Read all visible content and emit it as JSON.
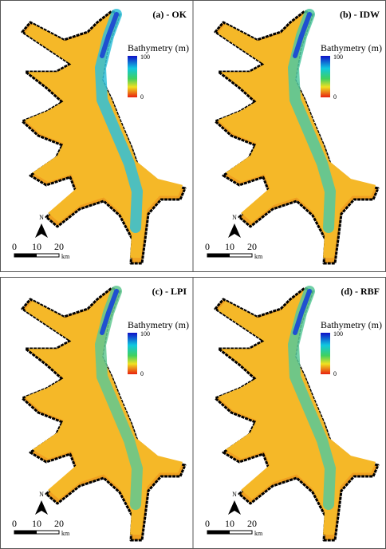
{
  "panels": [
    {
      "title": "(a) - OK",
      "legend_title": "Bathymetry (m)",
      "legend_max": "100",
      "legend_min": "0",
      "north": "N",
      "scale": [
        "0",
        "10",
        "20"
      ],
      "scale_unit": "km"
    },
    {
      "title": "(b) - IDW",
      "legend_title": "Bathymetry (m)",
      "legend_max": "100",
      "legend_min": "0",
      "north": "N",
      "scale": [
        "0",
        "10",
        "20"
      ],
      "scale_unit": "km"
    },
    {
      "title": "(c) - LPI",
      "legend_title": "Bathymetry (m)",
      "legend_max": "100",
      "legend_min": "0",
      "north": "N",
      "scale": [
        "0",
        "10",
        "20"
      ],
      "scale_unit": "km"
    },
    {
      "title": "(d) - RBF",
      "legend_title": "Bathymetry (m)",
      "legend_max": "100",
      "legend_min": "0",
      "north": "N",
      "scale": [
        "0",
        "10",
        "20"
      ],
      "scale_unit": "km"
    }
  ]
}
